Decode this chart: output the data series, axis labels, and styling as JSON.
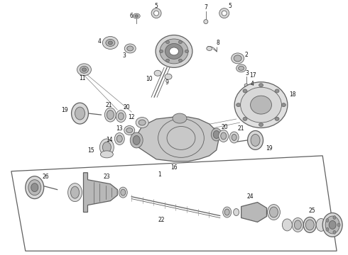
{
  "bg_color": "#ffffff",
  "lc": "#606060",
  "lc_dark": "#404040",
  "gray_light": "#d8d8d8",
  "gray_mid": "#b8b8b8",
  "gray_dark": "#909090",
  "fig_width": 4.9,
  "fig_height": 3.6,
  "dpi": 100,
  "label_fs": 5.5,
  "label_color": "#111111"
}
